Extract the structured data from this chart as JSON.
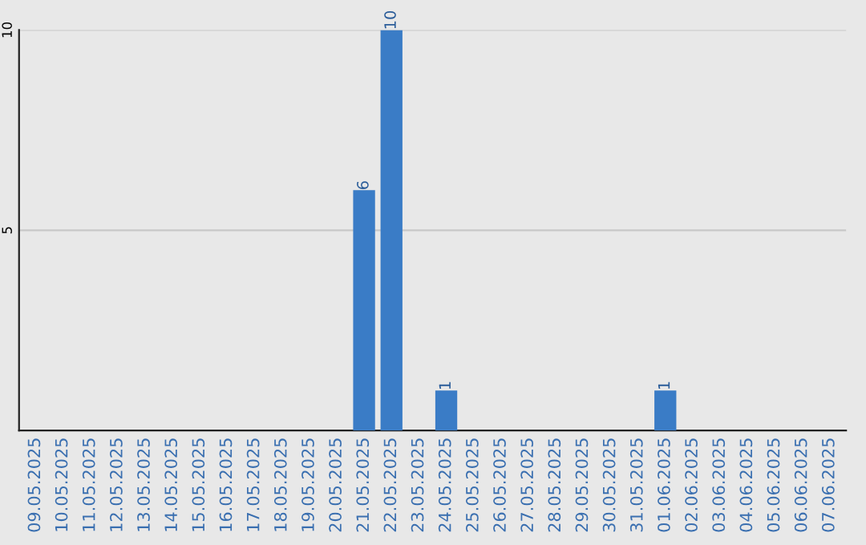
{
  "chart_data": {
    "type": "bar",
    "categories": [
      "09.05.2025",
      "10.05.2025",
      "11.05.2025",
      "12.05.2025",
      "13.05.2025",
      "14.05.2025",
      "15.05.2025",
      "16.05.2025",
      "17.05.2025",
      "18.05.2025",
      "19.05.2025",
      "20.05.2025",
      "21.05.2025",
      "22.05.2025",
      "23.05.2025",
      "24.05.2025",
      "25.05.2025",
      "26.05.2025",
      "27.05.2025",
      "28.05.2025",
      "29.05.2025",
      "30.05.2025",
      "31.05.2025",
      "01.06.2025",
      "02.06.2025",
      "03.06.2025",
      "04.06.2025",
      "05.06.2025",
      "06.06.2025",
      "07.06.2025"
    ],
    "values": [
      0,
      0,
      0,
      0,
      0,
      0,
      0,
      0,
      0,
      0,
      0,
      0,
      6,
      10,
      0,
      1,
      0,
      0,
      0,
      0,
      0,
      0,
      0,
      1,
      0,
      0,
      0,
      0,
      0,
      0
    ],
    "value_labels": [
      null,
      null,
      null,
      null,
      null,
      null,
      null,
      null,
      null,
      null,
      null,
      null,
      "6",
      "10",
      null,
      "1",
      null,
      null,
      null,
      null,
      null,
      null,
      null,
      "1",
      null,
      null,
      null,
      null,
      null,
      null
    ],
    "color": "#3a7cc6",
    "ylim": [
      0,
      10
    ],
    "yticks": [
      5,
      10
    ],
    "grid": "y",
    "legend": false
  }
}
